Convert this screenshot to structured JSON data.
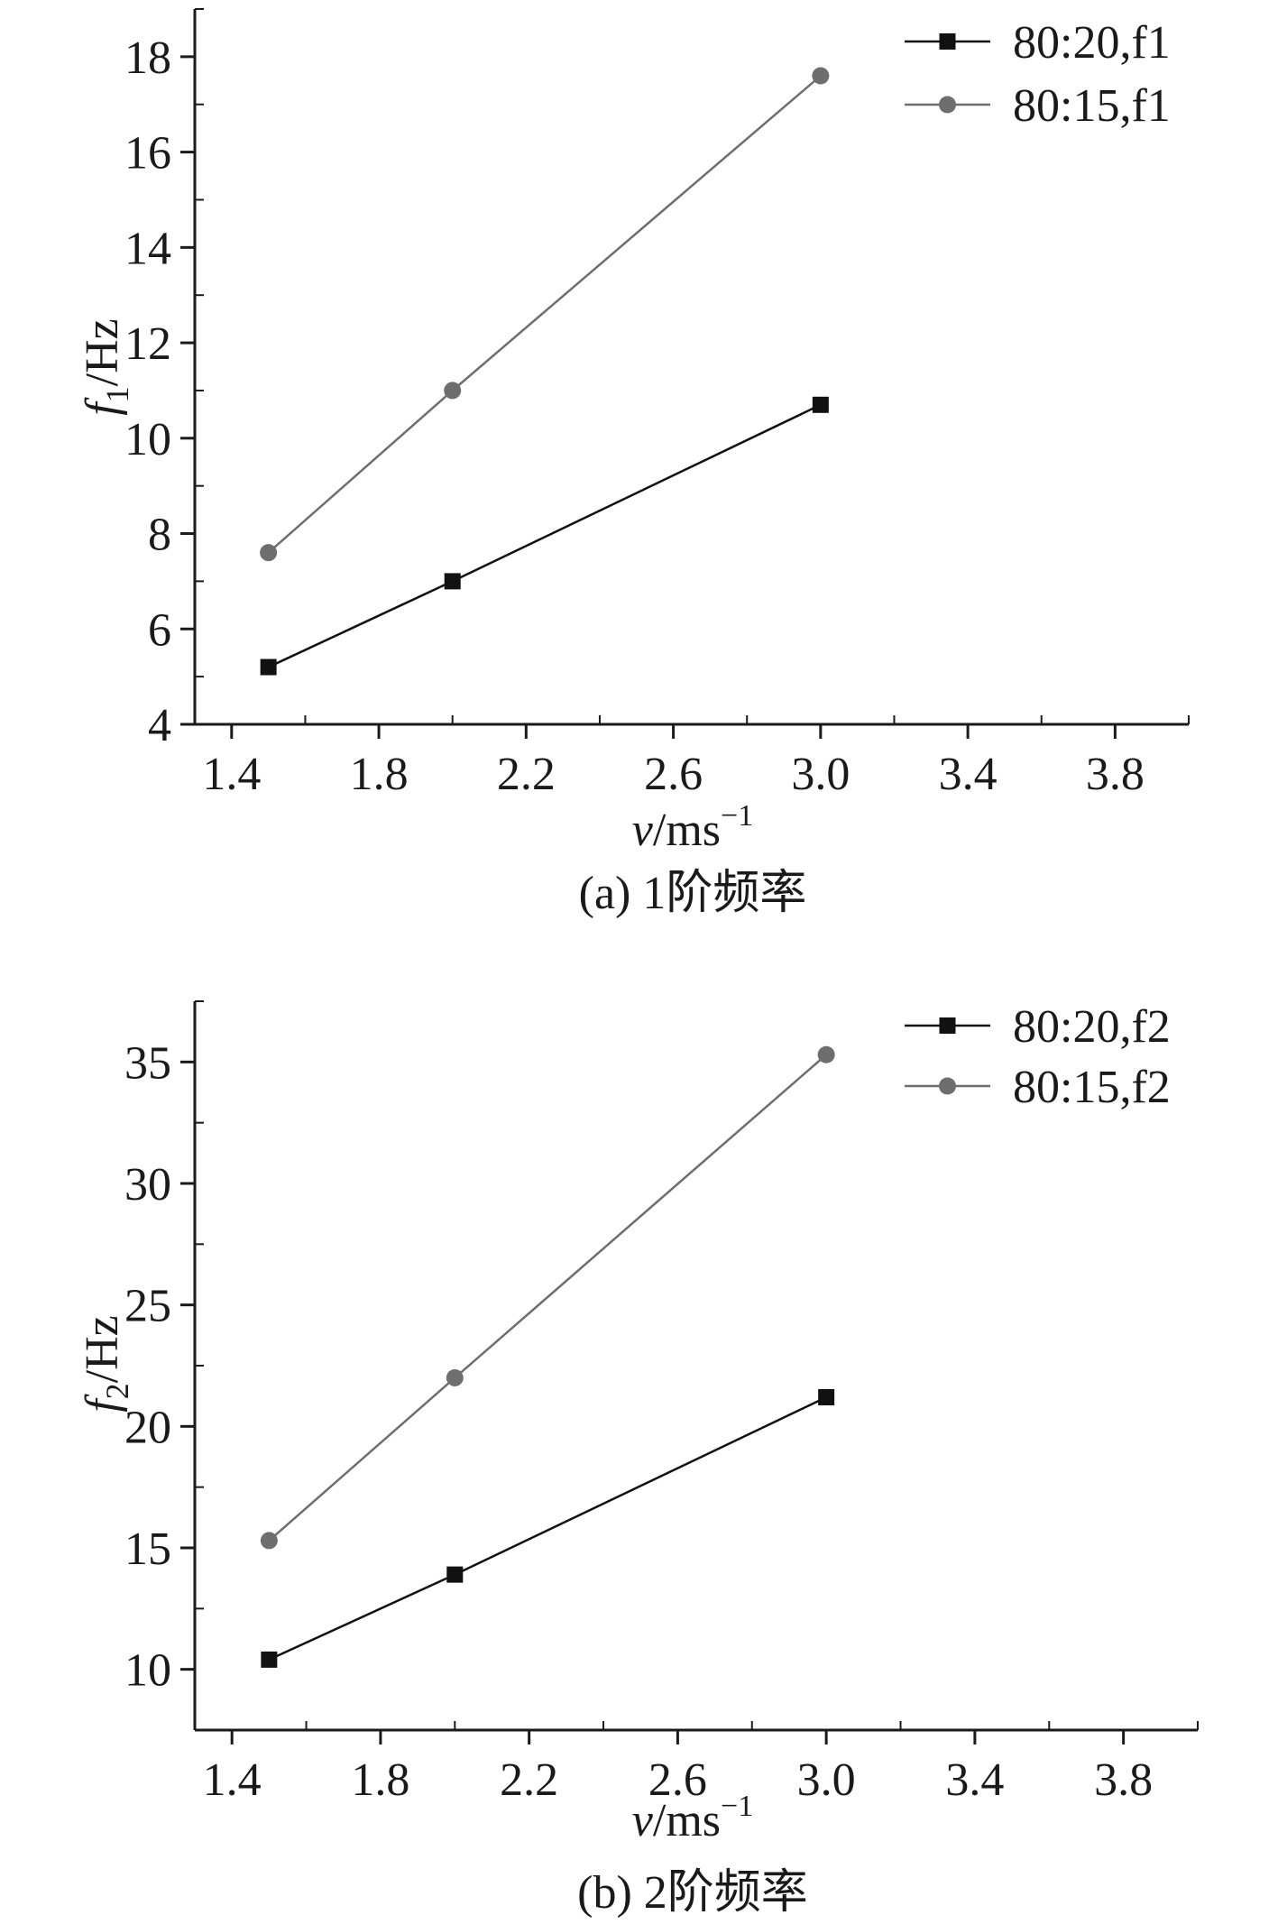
{
  "chart_data": [
    {
      "type": "line",
      "xlim": [
        1.3,
        4.0
      ],
      "ylim": [
        4,
        19
      ],
      "xticks": [
        1.4,
        1.8,
        2.2,
        2.6,
        3.0,
        3.4,
        3.8
      ],
      "xtick_labels": [
        "1.4",
        "1.8",
        "2.2",
        "2.6",
        "3.0",
        "3.4",
        "3.8"
      ],
      "yticks": [
        4,
        6,
        8,
        10,
        12,
        14,
        16,
        18
      ],
      "ytick_labels": [
        "4",
        "6",
        "8",
        "10",
        "12",
        "14",
        "16",
        "18"
      ],
      "ylabel": {
        "var": "f",
        "sub": "1",
        "unit": "/Hz"
      },
      "xlabel": {
        "var": "v",
        "unit": "/ms",
        "sup": "−1"
      },
      "caption": "(a) 1阶频率",
      "legend_position": "top-right",
      "series": [
        {
          "name": "80:20,f1",
          "marker": "square",
          "color": "#111111",
          "x": [
            1.5,
            2.0,
            3.0
          ],
          "y": [
            5.2,
            7.0,
            10.7
          ]
        },
        {
          "name": "80:15,f1",
          "marker": "circle",
          "color": "#6e6e6e",
          "x": [
            1.5,
            2.0,
            3.0
          ],
          "y": [
            7.6,
            11.0,
            17.6
          ]
        }
      ]
    },
    {
      "type": "line",
      "xlim": [
        1.3,
        4.0
      ],
      "ylim": [
        7.5,
        37.5
      ],
      "xticks": [
        1.4,
        1.8,
        2.2,
        2.6,
        3.0,
        3.4,
        3.8
      ],
      "xtick_labels": [
        "1.4",
        "1.8",
        "2.2",
        "2.6",
        "3.0",
        "3.4",
        "3.8"
      ],
      "yticks": [
        10,
        15,
        20,
        25,
        30,
        35
      ],
      "ytick_labels": [
        "10",
        "15",
        "20",
        "25",
        "30",
        "35"
      ],
      "ylabel": {
        "var": "f",
        "sub": "2",
        "unit": "/Hz"
      },
      "xlabel": {
        "var": "v",
        "unit": "/ms",
        "sup": "−1"
      },
      "caption": "(b) 2阶频率",
      "legend_position": "top-right",
      "series": [
        {
          "name": "80:20,f2",
          "marker": "square",
          "color": "#111111",
          "x": [
            1.5,
            2.0,
            3.0
          ],
          "y": [
            10.4,
            13.9,
            21.2
          ]
        },
        {
          "name": "80:15,f2",
          "marker": "circle",
          "color": "#6e6e6e",
          "x": [
            1.5,
            2.0,
            3.0
          ],
          "y": [
            15.3,
            22.0,
            35.3
          ]
        }
      ]
    }
  ]
}
